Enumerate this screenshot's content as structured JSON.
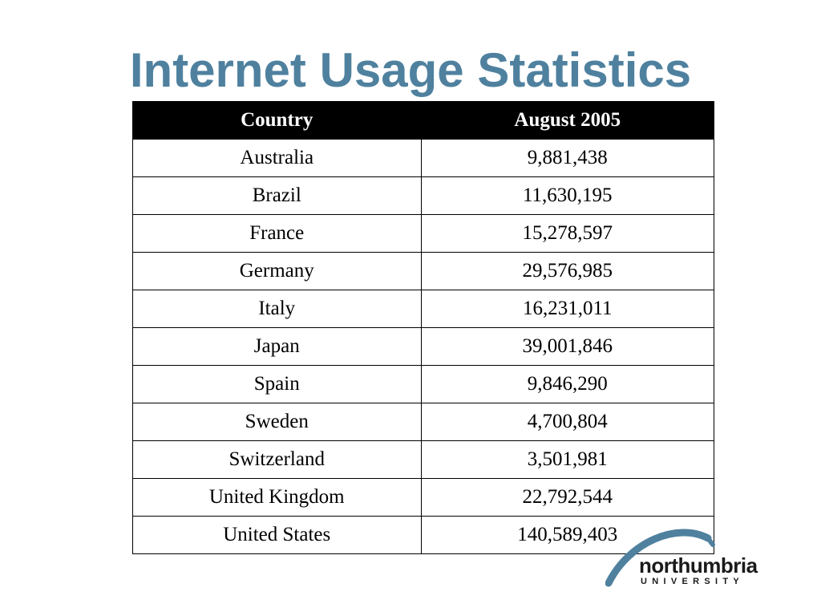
{
  "slide": {
    "title": "Internet Usage Statistics"
  },
  "table": {
    "headers": [
      "Country",
      "August 2005"
    ],
    "rows": [
      [
        "Australia",
        "9,881,438"
      ],
      [
        "Brazil",
        "11,630,195"
      ],
      [
        "France",
        "15,278,597"
      ],
      [
        "Germany",
        "29,576,985"
      ],
      [
        "Italy",
        "16,231,011"
      ],
      [
        "Japan",
        "39,001,846"
      ],
      [
        "Spain",
        "9,846,290"
      ],
      [
        "Sweden",
        "4,700,804"
      ],
      [
        "Switzerland",
        "3,501,981"
      ],
      [
        "United Kingdom",
        "22,792,544"
      ],
      [
        "United States",
        "140,589,403"
      ]
    ]
  },
  "logo": {
    "name": "northumbria",
    "subtitle": "UNIVERSITY",
    "accent": "#4f819f"
  },
  "colors": {
    "title": "#4f819f",
    "header_bg": "#000000",
    "header_text": "#ffffff"
  }
}
